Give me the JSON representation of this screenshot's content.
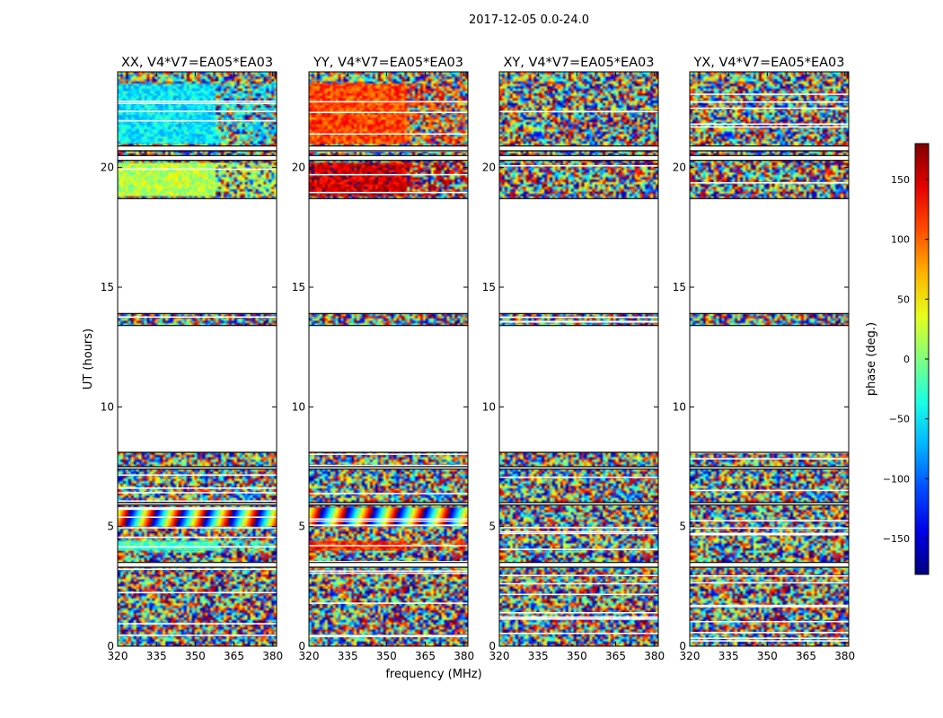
{
  "figure": {
    "suptitle": "2017-12-05 0.0-24.0",
    "xlabel": "frequency (MHz)",
    "ylabel": "UT (hours)"
  },
  "chart_data": {
    "type": "heatmap",
    "title": "2017-12-05 0.0-24.0",
    "xlabel": "frequency (MHz)",
    "ylabel": "UT (hours)",
    "xlim": [
      320,
      381.5
    ],
    "ylim": [
      0,
      24
    ],
    "x_ticks": [
      320,
      335,
      350,
      365,
      380
    ],
    "y_ticks": [
      0,
      5,
      10,
      15,
      20
    ],
    "panels": [
      {
        "title": "XX, V4*V7=EA05*EA03",
        "polarization": "XX"
      },
      {
        "title": "YY, V4*V7=EA05*EA03",
        "polarization": "YY"
      },
      {
        "title": "XY, V4*V7=EA05*EA03",
        "polarization": "XY"
      },
      {
        "title": "YX, V4*V7=EA05*EA03",
        "polarization": "YX"
      }
    ],
    "data_blocks_ut_hours": [
      [
        0.0,
        3.3
      ],
      [
        3.5,
        5.9
      ],
      [
        6.0,
        7.4
      ],
      [
        7.5,
        8.1
      ],
      [
        13.4,
        13.9
      ],
      [
        18.7,
        20.3
      ],
      [
        20.5,
        20.7
      ],
      [
        20.9,
        24.0
      ]
    ],
    "coherent_features": [
      {
        "ut": [
          5.0,
          5.8
        ],
        "description": "phase wrapping stripes in XX and YY"
      },
      {
        "ut": [
          4.0,
          4.4
        ],
        "XX_phase_deg": -20,
        "YY_phase_deg": 120
      },
      {
        "ut": [
          18.8,
          20.2
        ],
        "XX_phase_deg": 20,
        "YY_phase_deg": 150
      },
      {
        "ut": [
          21.0,
          23.5
        ],
        "XX_phase_deg": -50,
        "YY_phase_deg": 110
      }
    ],
    "colorbar": {
      "label": "phase (deg.)",
      "range": [
        -180,
        180
      ],
      "ticks": [
        150,
        100,
        50,
        0,
        -50,
        -100,
        -150
      ],
      "tick_labels": [
        "150",
        "100",
        "50",
        "0",
        "−50",
        "−100",
        "−150"
      ],
      "colormap": "jet"
    }
  }
}
